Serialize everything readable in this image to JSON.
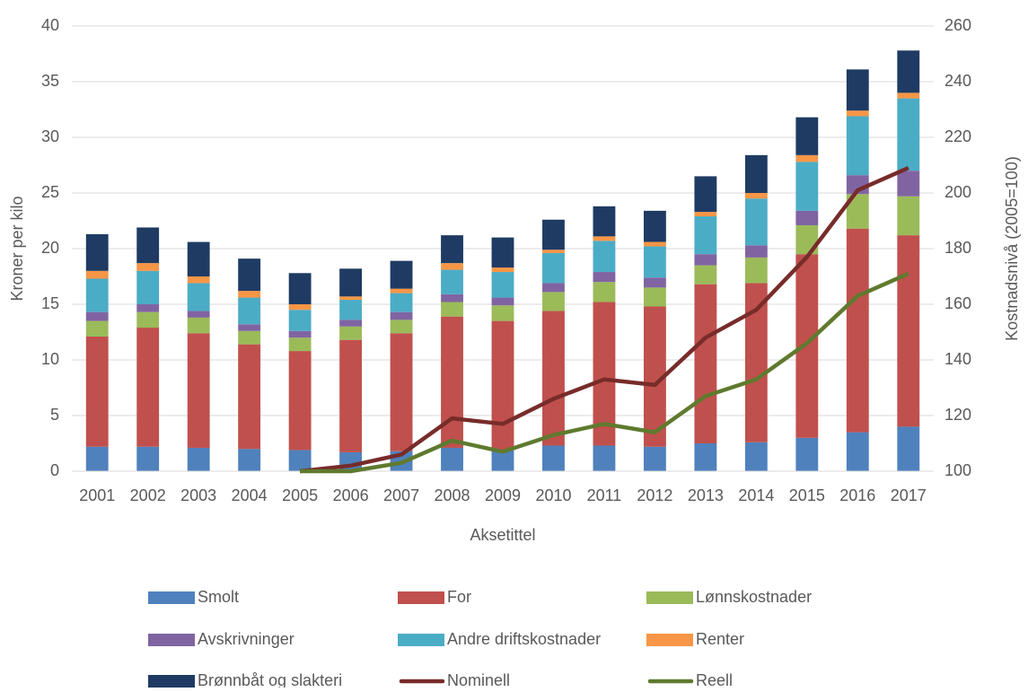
{
  "chart_data": {
    "type": "bar",
    "stacked": true,
    "y_label": "Kroner per kilo",
    "y2_label": "Kostnadsnivå (2005=100)",
    "x_label": "Aksetittel",
    "categories": [
      "2001",
      "2002",
      "2003",
      "2004",
      "2005",
      "2006",
      "2007",
      "2008",
      "2009",
      "2010",
      "2011",
      "2012",
      "2013",
      "2014",
      "2015",
      "2016",
      "2017"
    ],
    "ylim": [
      0,
      40
    ],
    "yticks": [
      0,
      5,
      10,
      15,
      20,
      25,
      30,
      35,
      40
    ],
    "y2lim": [
      100,
      260
    ],
    "y2ticks": [
      100,
      120,
      140,
      160,
      180,
      200,
      220,
      240,
      260
    ],
    "grid": true,
    "legend": "bottom",
    "series": [
      {
        "name": "Smolt",
        "color": "#4f81bd",
        "values": [
          2.2,
          2.2,
          2.1,
          2.0,
          1.9,
          1.7,
          1.8,
          2.1,
          1.9,
          2.3,
          2.3,
          2.2,
          2.5,
          2.6,
          3.0,
          3.5,
          4.0
        ]
      },
      {
        "name": "For",
        "color": "#c0504d",
        "values": [
          9.9,
          10.7,
          10.3,
          9.4,
          8.9,
          10.1,
          10.6,
          11.8,
          11.6,
          12.1,
          12.9,
          12.6,
          14.3,
          14.3,
          16.5,
          18.3,
          17.2
        ]
      },
      {
        "name": "Lønnskostnader",
        "color": "#9bbb59",
        "values": [
          1.4,
          1.4,
          1.4,
          1.2,
          1.2,
          1.2,
          1.2,
          1.3,
          1.4,
          1.7,
          1.8,
          1.7,
          1.7,
          2.3,
          2.6,
          3.1,
          3.5
        ]
      },
      {
        "name": "Avskrivninger",
        "color": "#8064a2",
        "values": [
          0.8,
          0.7,
          0.6,
          0.6,
          0.6,
          0.6,
          0.7,
          0.7,
          0.7,
          0.8,
          0.9,
          0.9,
          1.0,
          1.1,
          1.3,
          1.7,
          2.3
        ]
      },
      {
        "name": "Andre driftskostnader",
        "color": "#4bacc6",
        "values": [
          3.0,
          3.0,
          2.5,
          2.4,
          1.9,
          1.8,
          1.7,
          2.2,
          2.3,
          2.7,
          2.8,
          2.8,
          3.4,
          4.2,
          4.4,
          5.3,
          6.5
        ]
      },
      {
        "name": "Renter",
        "color": "#f79646",
        "values": [
          0.7,
          0.7,
          0.6,
          0.6,
          0.5,
          0.3,
          0.4,
          0.6,
          0.4,
          0.3,
          0.4,
          0.4,
          0.4,
          0.5,
          0.6,
          0.5,
          0.5
        ]
      },
      {
        "name": "Brønnbåt og slakteri",
        "color": "#1f3b63",
        "values": [
          3.3,
          3.2,
          3.1,
          2.9,
          2.8,
          2.5,
          2.5,
          2.5,
          2.7,
          2.7,
          2.7,
          2.8,
          3.2,
          3.4,
          3.4,
          3.7,
          3.8
        ]
      },
      {
        "name": "Nominell",
        "type": "line",
        "axis": "y2",
        "color": "#772c2a",
        "values": [
          null,
          null,
          null,
          null,
          100,
          102,
          106,
          119,
          117,
          126,
          133,
          131,
          148,
          158,
          177,
          201,
          209
        ]
      },
      {
        "name": "Reell",
        "type": "line",
        "axis": "y2",
        "color": "#5f7a2e",
        "values": [
          null,
          null,
          null,
          null,
          100,
          100,
          103,
          111,
          107,
          113,
          117,
          114,
          127,
          133,
          146,
          163,
          171
        ]
      }
    ]
  }
}
